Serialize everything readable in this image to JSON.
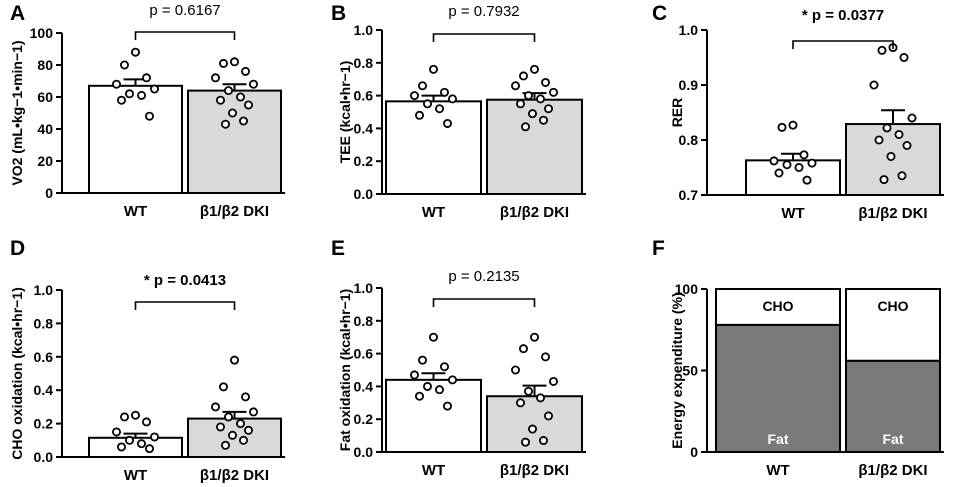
{
  "chart_data": [
    {
      "panel": "A",
      "type": "bar",
      "categories": [
        "WT",
        "β1/β2 DKI"
      ],
      "values": [
        67,
        64
      ],
      "sem": [
        4,
        4
      ],
      "points": [
        [
          88,
          80,
          72,
          68,
          65,
          62,
          61,
          58,
          48
        ],
        [
          82,
          81,
          76,
          72,
          68,
          64,
          60,
          58,
          55,
          50,
          45,
          43
        ]
      ],
      "ylabel": "VO2 (mL•kg−1•min−1)",
      "ylim": [
        0,
        100
      ],
      "yticks": [
        "0",
        "20",
        "40",
        "60",
        "80",
        "100"
      ],
      "p_text": "p = 0.6167",
      "significant": false
    },
    {
      "panel": "B",
      "type": "bar",
      "categories": [
        "WT",
        "β1/β2 DKI"
      ],
      "values": [
        0.565,
        0.575
      ],
      "sem": [
        0.035,
        0.04
      ],
      "points": [
        [
          0.76,
          0.66,
          0.62,
          0.6,
          0.58,
          0.55,
          0.52,
          0.48,
          0.43
        ],
        [
          0.76,
          0.72,
          0.68,
          0.66,
          0.62,
          0.6,
          0.58,
          0.55,
          0.52,
          0.49,
          0.45,
          0.41
        ]
      ],
      "ylabel": "TEE (kcal•hr−1)",
      "ylim": [
        0,
        1.0
      ],
      "yticks": [
        "0.0",
        "0.2",
        "0.4",
        "0.6",
        "0.8",
        "1.0"
      ],
      "p_text": "p = 0.7932",
      "significant": false
    },
    {
      "panel": "C",
      "type": "bar",
      "categories": [
        "WT",
        "β1/β2 DKI"
      ],
      "values": [
        0.763,
        0.829
      ],
      "sem": [
        0.012,
        0.025
      ],
      "points": [
        [
          0.827,
          0.823,
          0.773,
          0.762,
          0.758,
          0.755,
          0.75,
          0.74,
          0.727
        ],
        [
          0.968,
          0.963,
          0.95,
          0.9,
          0.84,
          0.822,
          0.81,
          0.8,
          0.79,
          0.77,
          0.735,
          0.728
        ]
      ],
      "ylabel": "RER",
      "ylim": [
        0.7,
        1.0
      ],
      "yticks": [
        "0.7",
        "0.8",
        "0.9",
        "1.0"
      ],
      "p_text": "* p = 0.0377",
      "significant": true
    },
    {
      "panel": "D",
      "type": "bar",
      "categories": [
        "WT",
        "β1/β2 DKI"
      ],
      "values": [
        0.115,
        0.23
      ],
      "sem": [
        0.025,
        0.04
      ],
      "points": [
        [
          0.25,
          0.24,
          0.21,
          0.15,
          0.12,
          0.1,
          0.08,
          0.06,
          0.05
        ],
        [
          0.58,
          0.42,
          0.36,
          0.3,
          0.27,
          0.24,
          0.2,
          0.18,
          0.16,
          0.13,
          0.1,
          0.07
        ]
      ],
      "ylabel": "CHO oxidation (kcal•hr−1)",
      "ylim": [
        0,
        1.0
      ],
      "yticks": [
        "0.0",
        "0.2",
        "0.4",
        "0.6",
        "0.8",
        "1.0"
      ],
      "p_text": "* p = 0.0413",
      "significant": true
    },
    {
      "panel": "E",
      "type": "bar",
      "categories": [
        "WT",
        "β1/β2 DKI"
      ],
      "values": [
        0.44,
        0.34
      ],
      "sem": [
        0.04,
        0.065
      ],
      "points": [
        [
          0.7,
          0.56,
          0.52,
          0.47,
          0.44,
          0.4,
          0.38,
          0.34,
          0.28
        ],
        [
          0.7,
          0.63,
          0.58,
          0.5,
          0.43,
          0.37,
          0.33,
          0.3,
          0.22,
          0.14,
          0.07,
          0.06
        ]
      ],
      "ylabel": "Fat oxidation (kcal•hr−1)",
      "ylim": [
        0,
        1.0
      ],
      "yticks": [
        "0.0",
        "0.2",
        "0.4",
        "0.6",
        "0.8",
        "1.0"
      ],
      "p_text": "p = 0.2135",
      "significant": false
    },
    {
      "panel": "F",
      "type": "stacked-bar",
      "categories": [
        "WT",
        "β1/β2 DKI"
      ],
      "series": [
        {
          "name": "Fat",
          "values": [
            78,
            56
          ]
        },
        {
          "name": "CHO",
          "values": [
            22,
            44
          ]
        }
      ],
      "ylabel": "Energy expenditure (%)",
      "ylim": [
        0,
        100
      ],
      "yticks": [
        "0",
        "50",
        "100"
      ]
    }
  ],
  "colors": {
    "wt_bar": "#ffffff",
    "dki_bar": "#d9d9d9",
    "fat": "#7a7a7a",
    "cho": "#ffffff",
    "axis": "#000000",
    "fat_label": "#ffffff"
  }
}
